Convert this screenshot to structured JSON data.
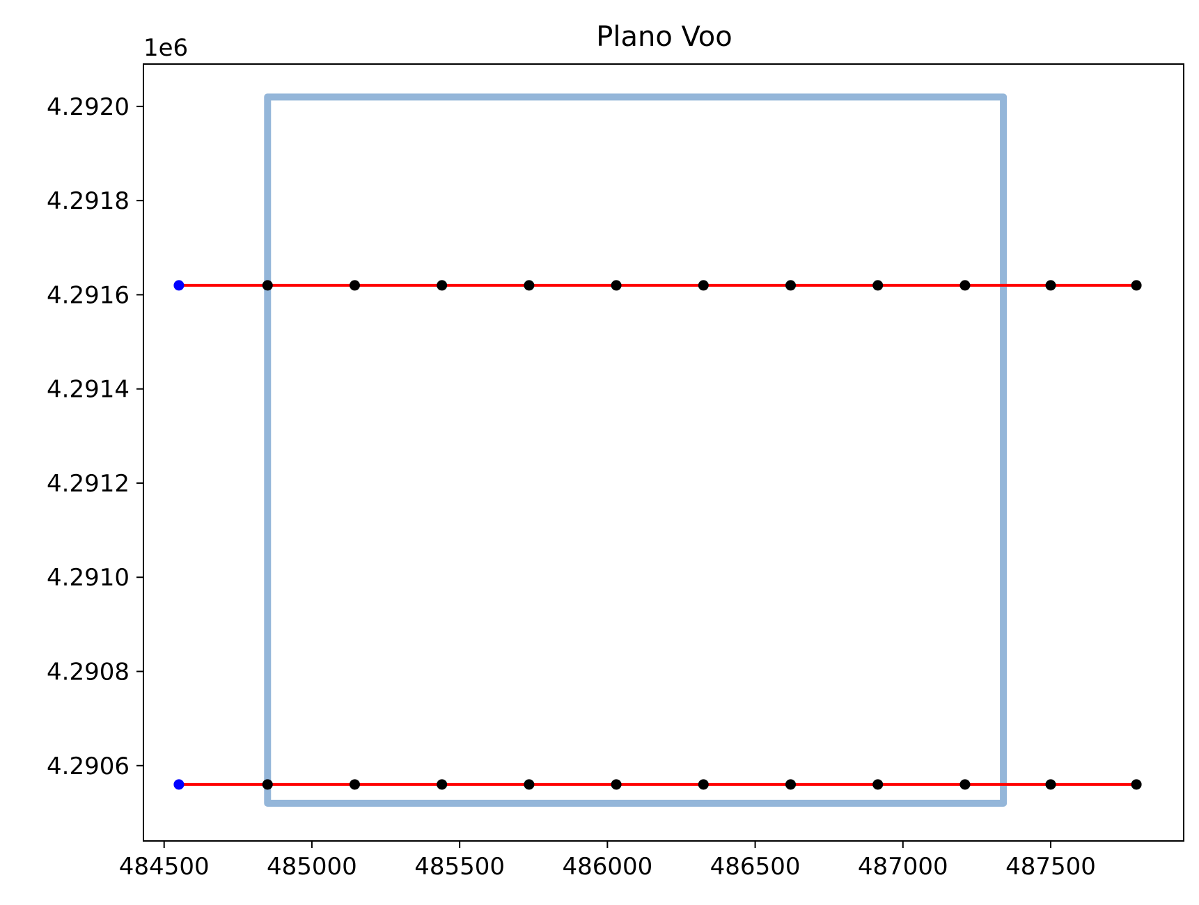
{
  "chart_data": {
    "type": "line",
    "title": "Plano Voo",
    "xlabel": "",
    "ylabel": "",
    "y_offset_label": "1e6",
    "xlim": [
      484430,
      487950
    ],
    "ylim": [
      4290440,
      4292090
    ],
    "y_scale_factor": 1000000,
    "grid": false,
    "x_ticks": [
      484500,
      485000,
      485500,
      486000,
      486500,
      487000,
      487500
    ],
    "x_tick_labels": [
      "484500",
      "485000",
      "485500",
      "486000",
      "486500",
      "487000",
      "487500"
    ],
    "y_ticks": [
      4290600,
      4290800,
      4291000,
      4291200,
      4291400,
      4291600,
      4291800,
      4292000
    ],
    "y_tick_labels": [
      "4.2906",
      "4.2908",
      "4.2910",
      "4.2912",
      "4.2914",
      "4.2916",
      "4.2918",
      "4.2920"
    ],
    "series": [
      {
        "kind": "polygon",
        "color": "#94b6d9",
        "x": [
          484850,
          484850,
          487340,
          487340,
          484850
        ],
        "y": [
          4290520,
          4292020,
          4292020,
          4290520,
          4290520
        ]
      },
      {
        "kind": "line",
        "color": "#ff0000",
        "x": [
          484550,
          487790
        ],
        "y": [
          4291620,
          4291620
        ]
      },
      {
        "kind": "line",
        "color": "#ff0000",
        "x": [
          484550,
          487790
        ],
        "y": [
          4290560,
          4290560
        ]
      },
      {
        "kind": "points",
        "color": "#0000ff",
        "x": [
          484550,
          484550
        ],
        "y": [
          4291620,
          4290560
        ]
      },
      {
        "kind": "points",
        "color": "#000000",
        "x": [
          484850,
          485145,
          485440,
          485735,
          486030,
          486325,
          486620,
          486915,
          487210,
          487500,
          487790,
          484850,
          485145,
          485440,
          485735,
          486030,
          486325,
          486620,
          486915,
          487210,
          487500,
          487790
        ],
        "y": [
          4291620,
          4291620,
          4291620,
          4291620,
          4291620,
          4291620,
          4291620,
          4291620,
          4291620,
          4291620,
          4291620,
          4290560,
          4290560,
          4290560,
          4290560,
          4290560,
          4290560,
          4290560,
          4290560,
          4290560,
          4290560,
          4290560
        ]
      }
    ]
  }
}
